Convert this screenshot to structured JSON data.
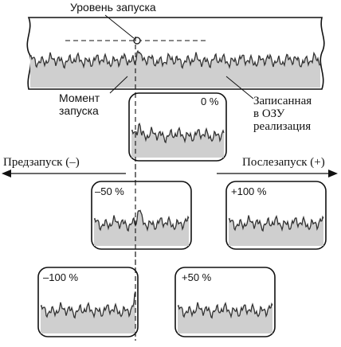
{
  "diagram": {
    "labels": {
      "trigger_level": "Уровень запуска",
      "trigger_moment_line1": "Момент",
      "trigger_moment_line2": "запуска",
      "recorded_line1": "Записанная",
      "recorded_line2": "в ОЗУ",
      "recorded_line3": "реализация",
      "pretrigger": "Предзапуск (–)",
      "posttrigger": "Послезапуск (+)"
    },
    "panels": {
      "p0": {
        "label": "0 %"
      },
      "pm50": {
        "label": "–50 %"
      },
      "pp100": {
        "label": "+100 %"
      },
      "pm100": {
        "label": "–100 %"
      },
      "pp50": {
        "label": "+50 %"
      }
    },
    "colors": {
      "ink": "#111111",
      "fill": "#c9c9c9"
    }
  }
}
